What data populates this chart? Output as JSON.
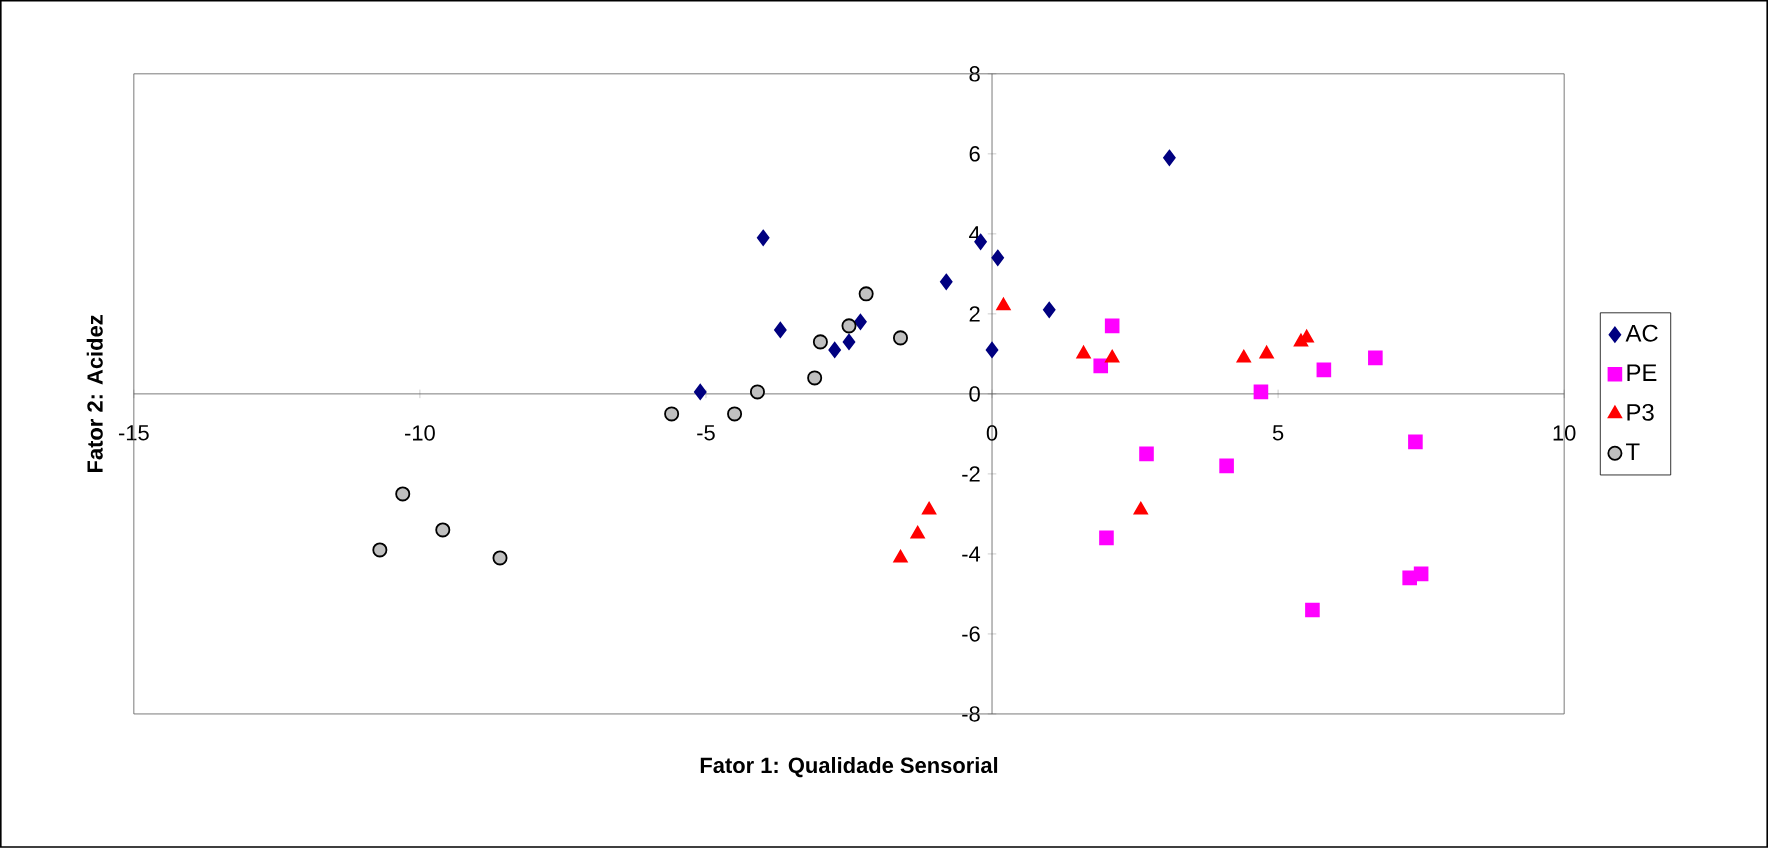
{
  "chart_data": {
    "type": "scatter",
    "xlabel": "Fator 1: Qualidade Sensorial",
    "ylabel": "Fator 2: Acidez",
    "xlim": [
      -15,
      10
    ],
    "xticks": [
      -15,
      -10,
      -5,
      0,
      5,
      10
    ],
    "ylim": [
      -8,
      8
    ],
    "yticks": [
      -8,
      -6,
      -4,
      -2,
      0,
      2,
      4,
      6,
      8
    ],
    "grid": false,
    "legend": "right",
    "series": [
      {
        "name": "AC",
        "color": "#000080",
        "marker": "diamond",
        "x": [
          -5.1,
          -4.0,
          -3.7,
          -2.75,
          -2.5,
          -2.3,
          -0.8,
          -0.2,
          0.1,
          0.0,
          1.0,
          3.1
        ],
        "values": [
          0.05,
          3.9,
          1.6,
          1.1,
          1.3,
          1.8,
          2.8,
          3.8,
          3.4,
          1.1,
          2.1,
          5.9
        ]
      },
      {
        "name": "PE",
        "color": "#ff00ff",
        "marker": "square",
        "x": [
          2.1,
          1.9,
          2.7,
          2.0,
          4.1,
          4.7,
          5.8,
          6.7,
          7.4,
          5.6,
          7.3,
          7.5
        ],
        "values": [
          1.7,
          0.7,
          -1.5,
          -3.6,
          -1.8,
          0.05,
          0.6,
          0.9,
          -1.2,
          -5.4,
          -4.6,
          -4.5
        ]
      },
      {
        "name": "P3",
        "color": "#ff0000",
        "marker": "triangle",
        "x": [
          -1.6,
          -1.3,
          -1.1,
          0.2,
          1.6,
          2.1,
          2.6,
          4.4,
          4.8,
          5.4,
          5.5
        ],
        "values": [
          -4.1,
          -3.5,
          -2.9,
          2.2,
          1.0,
          0.9,
          -2.9,
          0.9,
          1.0,
          1.3,
          1.4
        ]
      },
      {
        "name": "T",
        "color": "#c0c0c0",
        "marker": "circle",
        "x": [
          -10.7,
          -10.3,
          -9.6,
          -8.6,
          -5.6,
          -4.5,
          -4.1,
          -3.1,
          -3.0,
          -2.5,
          -2.2,
          -1.6
        ],
        "values": [
          -3.9,
          -2.5,
          -3.4,
          -4.1,
          -0.5,
          -0.5,
          0.05,
          0.4,
          1.3,
          1.7,
          2.5,
          1.4
        ]
      }
    ]
  }
}
